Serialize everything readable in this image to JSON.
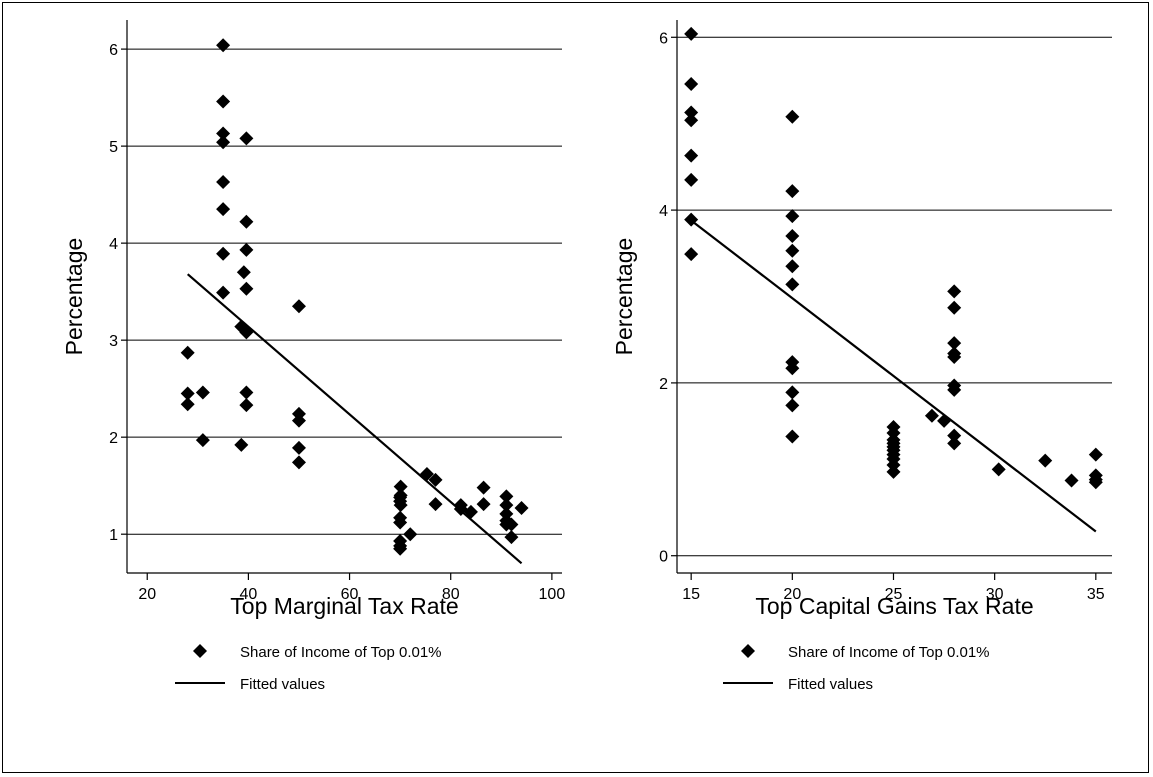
{
  "chart_data": [
    {
      "type": "scatter",
      "xlabel": "Top Marginal Tax Rate",
      "ylabel": "Percentage",
      "xlim": [
        16,
        102
      ],
      "ylim": [
        0.6,
        6.3
      ],
      "xticks": [
        20,
        40,
        60,
        80,
        100
      ],
      "yticks": [
        1,
        2,
        3,
        4,
        5,
        6
      ],
      "grid": "horizontal",
      "legend_position": "bottom",
      "series": [
        {
          "name": "Share of Income of Top 0.01%",
          "kind": "scatter",
          "marker": "diamond",
          "color": "#000000",
          "points": [
            [
              28,
              2.87
            ],
            [
              28,
              2.45
            ],
            [
              28,
              2.34
            ],
            [
              31,
              2.46
            ],
            [
              31,
              1.97
            ],
            [
              35,
              6.04
            ],
            [
              35,
              5.46
            ],
            [
              35,
              5.13
            ],
            [
              35,
              5.04
            ],
            [
              35,
              4.63
            ],
            [
              35,
              4.35
            ],
            [
              35,
              3.89
            ],
            [
              35,
              3.49
            ],
            [
              38.6,
              3.14
            ],
            [
              38.6,
              1.92
            ],
            [
              39.1,
              3.7
            ],
            [
              39.6,
              3.08
            ],
            [
              39.6,
              5.08
            ],
            [
              39.6,
              4.22
            ],
            [
              39.6,
              3.93
            ],
            [
              39.6,
              3.53
            ],
            [
              39.6,
              2.46
            ],
            [
              39.6,
              2.33
            ],
            [
              50,
              3.35
            ],
            [
              50,
              2.24
            ],
            [
              50,
              2.17
            ],
            [
              50,
              1.89
            ],
            [
              50,
              1.74
            ],
            [
              70,
              1.38
            ],
            [
              70,
              1.34
            ],
            [
              70,
              1.17
            ],
            [
              70,
              1.12
            ],
            [
              70,
              0.93
            ],
            [
              70,
              0.88
            ],
            [
              70,
              0.85
            ],
            [
              70.1,
              1.49
            ],
            [
              70.1,
              1.4
            ],
            [
              70.1,
              1.3
            ],
            [
              72,
              1.0
            ],
            [
              75.3,
              1.62
            ],
            [
              77,
              1.56
            ],
            [
              77,
              1.31
            ],
            [
              82,
              1.3
            ],
            [
              82,
              1.26
            ],
            [
              84,
              1.23
            ],
            [
              86.5,
              1.48
            ],
            [
              86.5,
              1.31
            ],
            [
              91,
              1.39
            ],
            [
              91,
              1.3
            ],
            [
              91,
              1.21
            ],
            [
              91,
              1.14
            ],
            [
              91,
              1.1
            ],
            [
              92,
              1.1
            ],
            [
              92,
              0.97
            ],
            [
              94,
              1.27
            ]
          ]
        },
        {
          "name": "Fitted values",
          "kind": "line",
          "color": "#000000",
          "points": [
            [
              28,
              3.68
            ],
            [
              94,
              0.7
            ]
          ]
        }
      ]
    },
    {
      "type": "scatter",
      "xlabel": "Top Capital Gains Tax Rate",
      "ylabel": "Percentage",
      "xlim": [
        14.3,
        35.8
      ],
      "ylim": [
        -0.2,
        6.2
      ],
      "xticks": [
        15,
        20,
        25,
        30,
        35
      ],
      "yticks": [
        0,
        2,
        4,
        6
      ],
      "grid": "horizontal",
      "legend_position": "bottom",
      "series": [
        {
          "name": "Share of Income of Top 0.01%",
          "kind": "scatter",
          "marker": "diamond",
          "color": "#000000",
          "points": [
            [
              15,
              6.04
            ],
            [
              15,
              5.46
            ],
            [
              15,
              5.13
            ],
            [
              15,
              5.04
            ],
            [
              15,
              4.63
            ],
            [
              15,
              4.35
            ],
            [
              15,
              3.89
            ],
            [
              15,
              3.49
            ],
            [
              20,
              5.08
            ],
            [
              20,
              4.22
            ],
            [
              20,
              3.93
            ],
            [
              20,
              3.7
            ],
            [
              20,
              3.53
            ],
            [
              20,
              3.35
            ],
            [
              20,
              3.14
            ],
            [
              20,
              2.24
            ],
            [
              20,
              2.17
            ],
            [
              20,
              1.89
            ],
            [
              20,
              1.74
            ],
            [
              20,
              1.38
            ],
            [
              25,
              1.49
            ],
            [
              25,
              1.42
            ],
            [
              25,
              1.34
            ],
            [
              25,
              1.3
            ],
            [
              25,
              1.26
            ],
            [
              25,
              1.22
            ],
            [
              25,
              1.17
            ],
            [
              25,
              1.12
            ],
            [
              25,
              1.05
            ],
            [
              25,
              0.97
            ],
            [
              26.9,
              1.62
            ],
            [
              27.5,
              1.56
            ],
            [
              28,
              3.06
            ],
            [
              28,
              2.87
            ],
            [
              28,
              2.46
            ],
            [
              28,
              2.34
            ],
            [
              28,
              2.3
            ],
            [
              28,
              1.97
            ],
            [
              28,
              1.92
            ],
            [
              28,
              1.39
            ],
            [
              28,
              1.3
            ],
            [
              30.2,
              1.0
            ],
            [
              32.5,
              1.1
            ],
            [
              33.8,
              0.87
            ],
            [
              35,
              1.17
            ],
            [
              35,
              0.93
            ],
            [
              35,
              0.88
            ],
            [
              35,
              0.85
            ]
          ]
        },
        {
          "name": "Fitted values",
          "kind": "line",
          "color": "#000000",
          "points": [
            [
              15,
              3.88
            ],
            [
              35,
              0.28
            ]
          ]
        }
      ]
    }
  ]
}
